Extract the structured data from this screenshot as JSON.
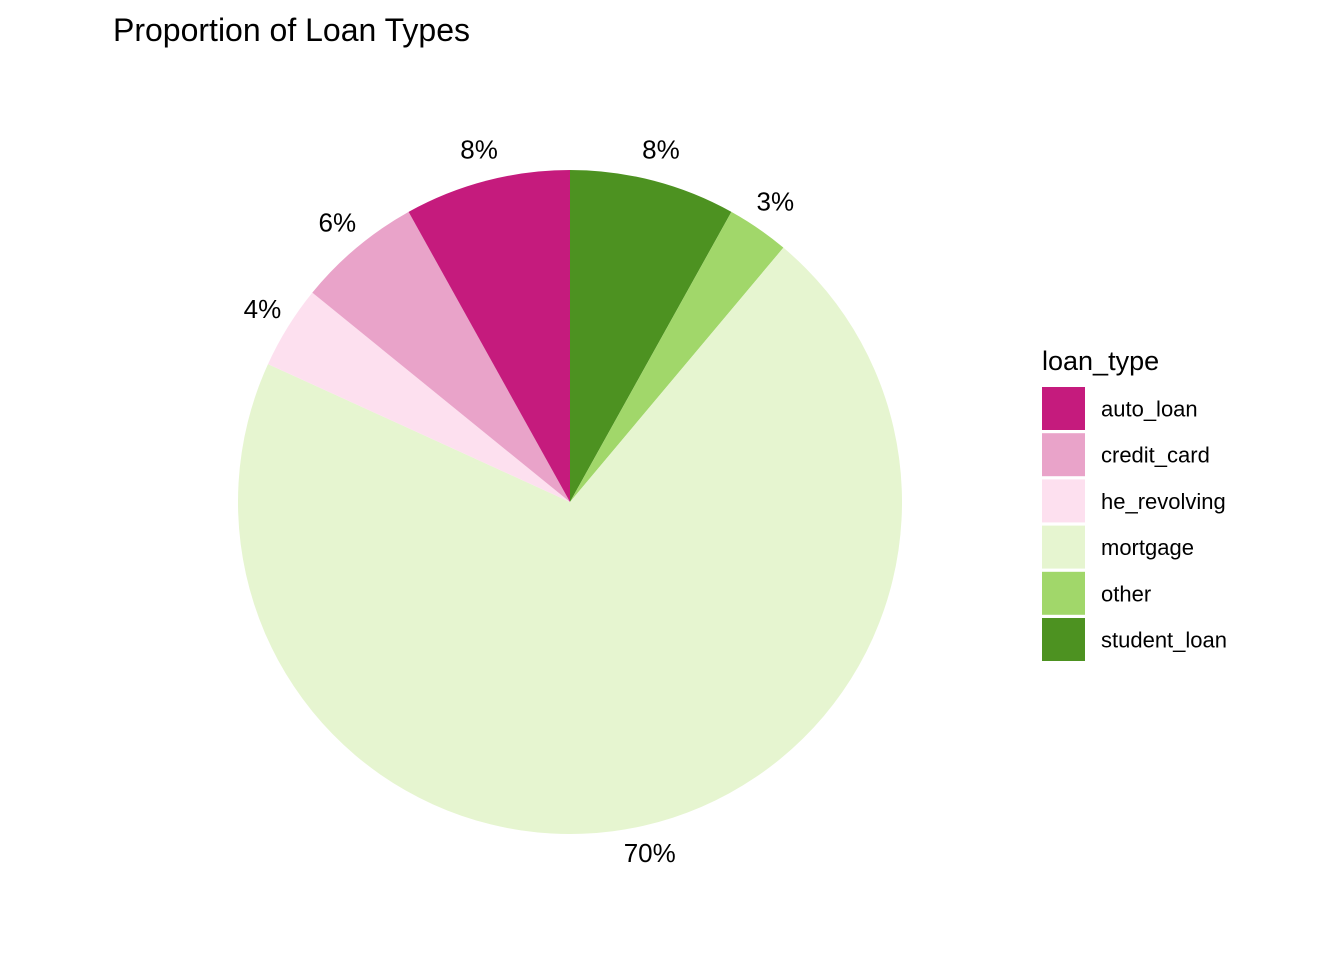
{
  "chart_data": {
    "type": "pie",
    "title": "Proportion of Loan Types",
    "legend_title": "loan_type",
    "legend_position": "right",
    "categories": [
      "auto_loan",
      "credit_card",
      "he_revolving",
      "mortgage",
      "other",
      "student_loan"
    ],
    "values": [
      8,
      6,
      4,
      70,
      3,
      8
    ],
    "labels": [
      "8%",
      "6%",
      "4%",
      "70%",
      "3%",
      "8%"
    ],
    "colors": [
      "#C51B7D",
      "#E9A3C9",
      "#FDE0EF",
      "#E6F5D0",
      "#A1D76A",
      "#4D9221"
    ],
    "slice_order": [
      "student_loan",
      "other",
      "mortgage",
      "he_revolving",
      "credit_card",
      "auto_loan"
    ],
    "direction": "clockwise from top"
  }
}
